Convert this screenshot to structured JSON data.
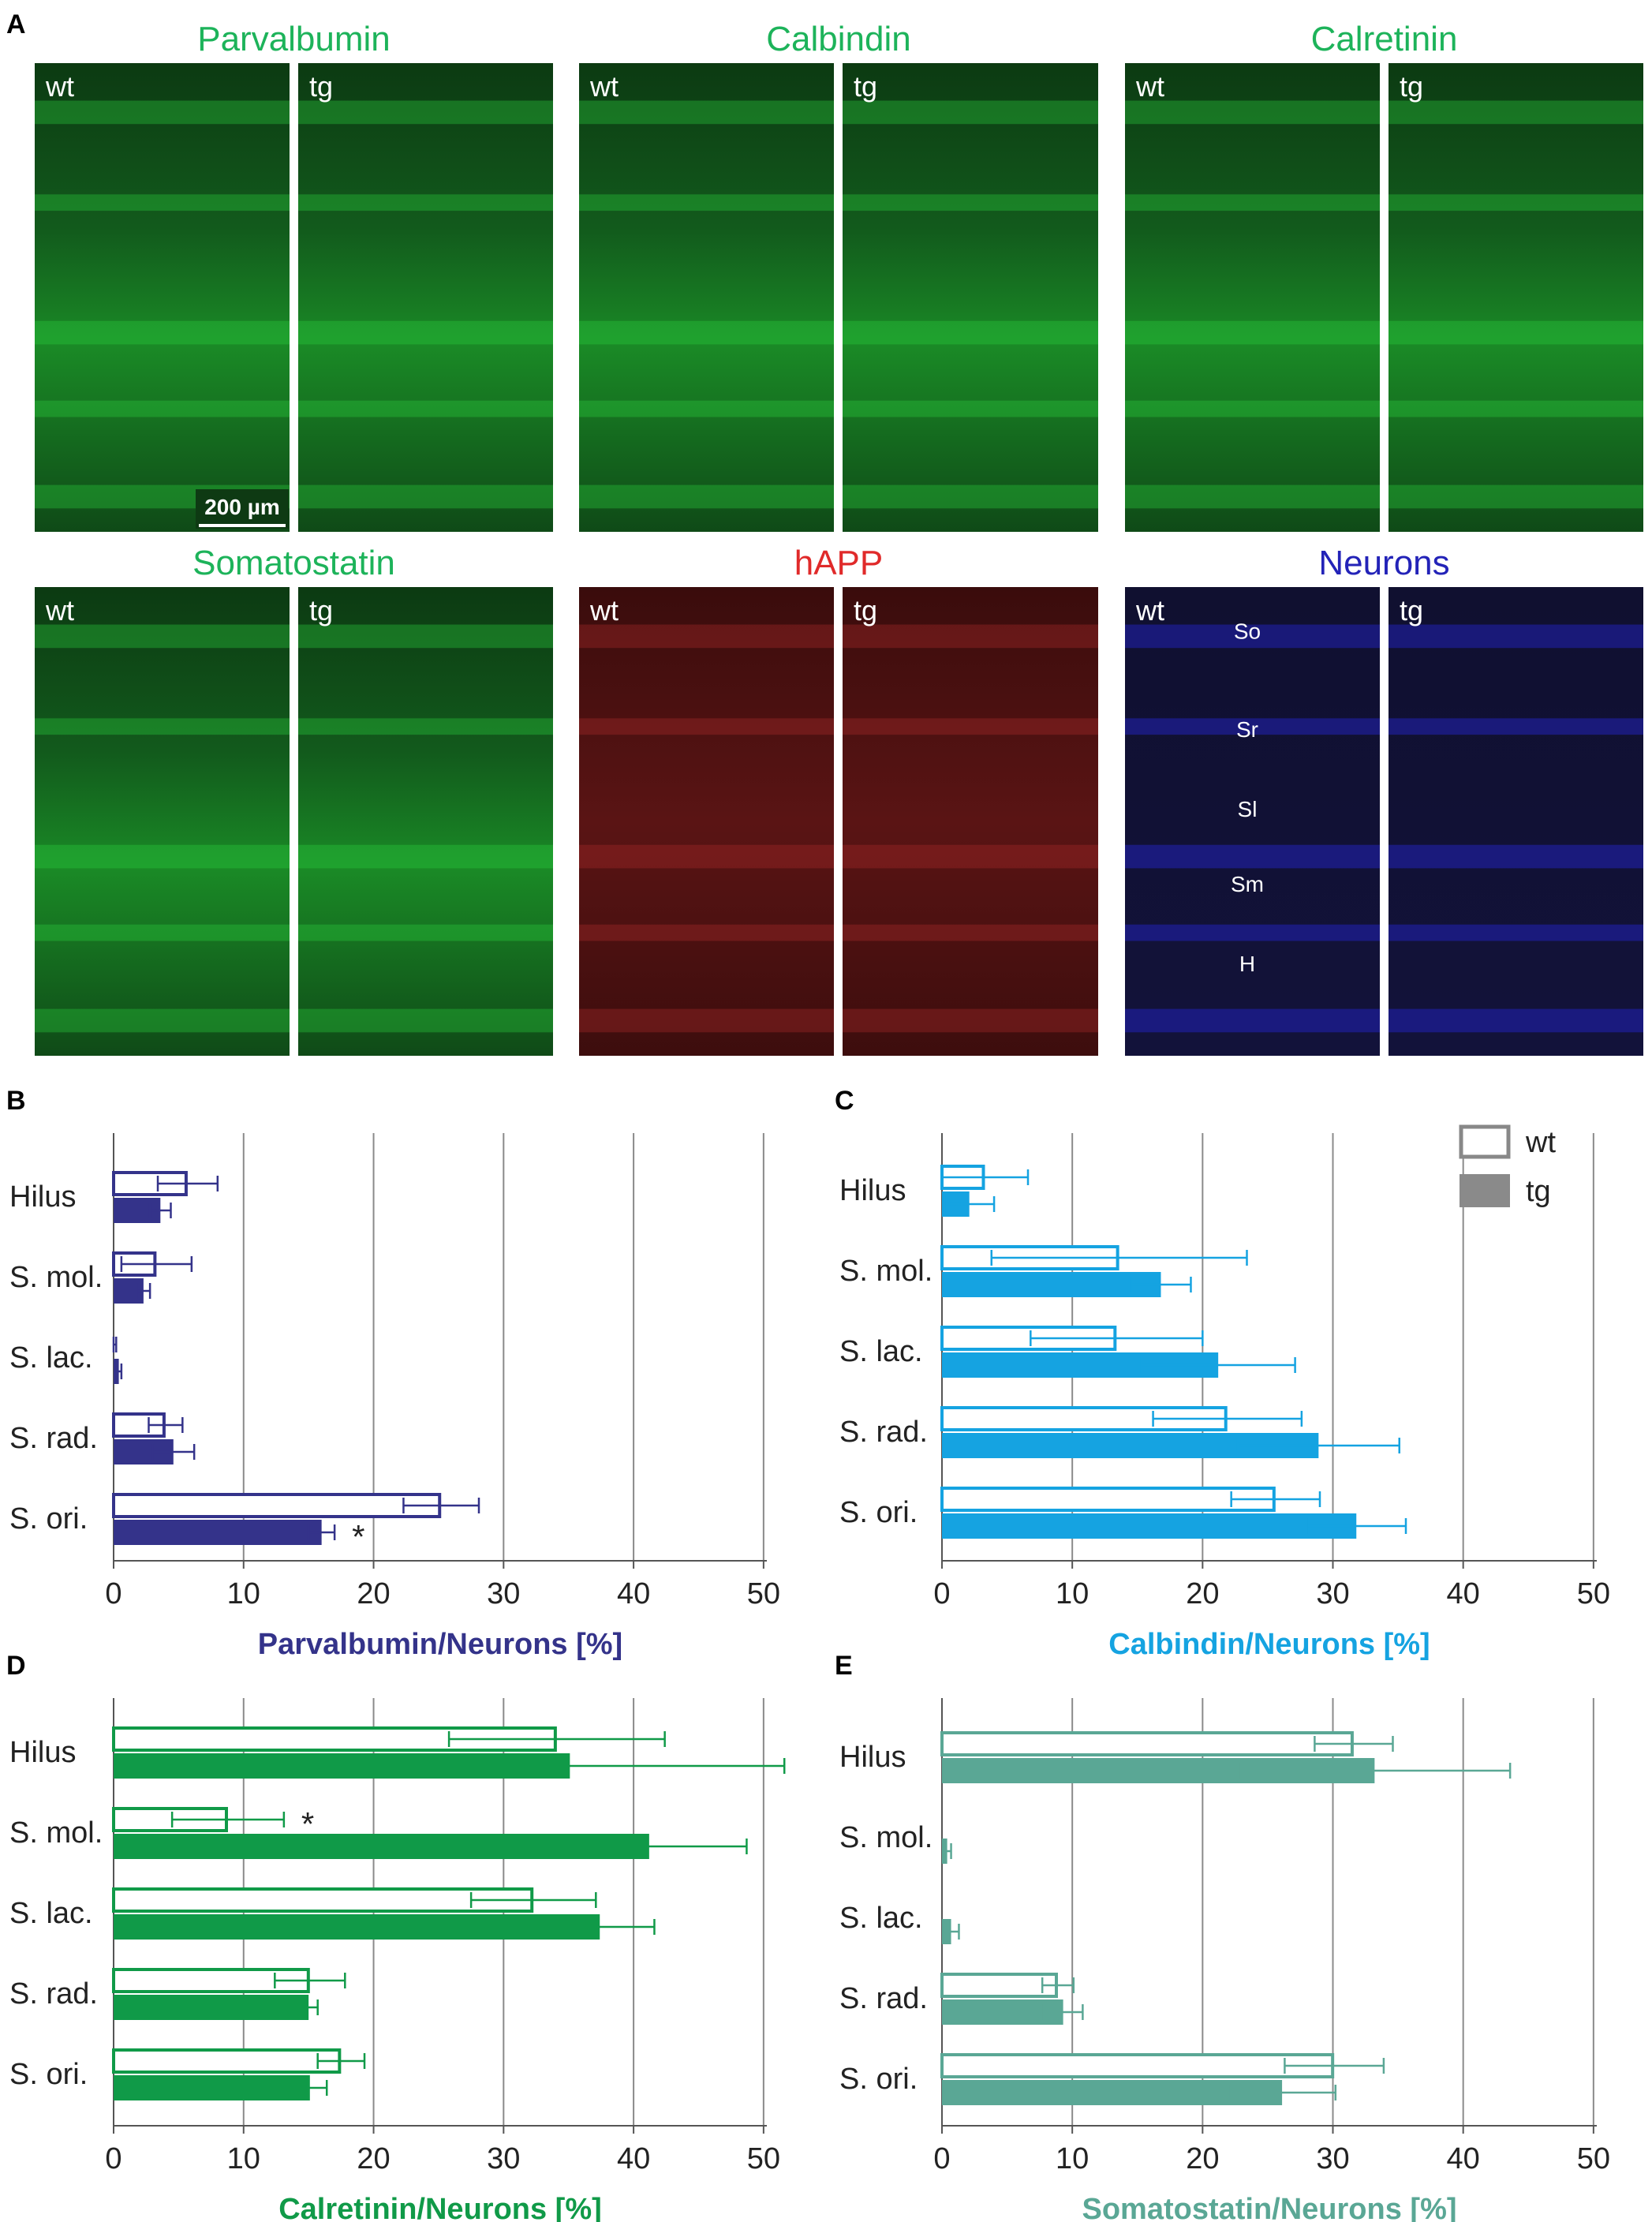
{
  "panel_a": {
    "letter": "A",
    "scale_bar": "200 µm",
    "groups": [
      {
        "title": "Parvalbumin",
        "title_color": "#1db35a",
        "tint": "green",
        "labels": [
          "wt",
          "tg"
        ]
      },
      {
        "title": "Calbindin",
        "title_color": "#1db35a",
        "tint": "green",
        "labels": [
          "wt",
          "tg"
        ]
      },
      {
        "title": "Calretinin",
        "title_color": "#1db35a",
        "tint": "green",
        "labels": [
          "wt",
          "tg"
        ]
      },
      {
        "title": "Somatostatin",
        "title_color": "#1db35a",
        "tint": "green",
        "labels": [
          "wt",
          "tg"
        ]
      },
      {
        "title": "hAPP",
        "title_color": "#e02a2a",
        "tint": "red",
        "labels": [
          "wt",
          "tg"
        ]
      },
      {
        "title": "Neurons",
        "title_color": "#2323b8",
        "tint": "blue",
        "labels": [
          "wt",
          "tg"
        ],
        "layer_labels": [
          "So",
          "Sr",
          "Sl",
          "Sm",
          "H"
        ]
      }
    ]
  },
  "legend": {
    "wt": "wt",
    "tg": "tg"
  },
  "chart_data": [
    {
      "type": "bar",
      "panel": "B",
      "orientation": "horizontal",
      "xlabel": "Parvalbumin/Neurons [%]",
      "color": "#34338a",
      "xlim": [
        0,
        50
      ],
      "xticks": [
        "0",
        "10",
        "20",
        "30",
        "40",
        "50"
      ],
      "categories": [
        "Hilus",
        "S. mol.",
        "S. lac.",
        "S. rad.",
        "S. ori."
      ],
      "series": [
        {
          "name": "wt",
          "values": [
            5.7,
            3.3,
            0.1,
            4.0,
            25.2
          ],
          "errors": [
            2.3,
            2.7,
            0.1,
            1.3,
            2.9
          ]
        },
        {
          "name": "tg",
          "values": [
            3.6,
            2.3,
            0.4,
            4.6,
            16.0
          ],
          "errors": [
            0.8,
            0.5,
            0.2,
            1.6,
            1.0
          ]
        }
      ],
      "annotations": [
        {
          "category": "S. ori.",
          "series": "tg",
          "text": "*"
        }
      ],
      "grid": true
    },
    {
      "type": "bar",
      "panel": "C",
      "orientation": "horizontal",
      "xlabel": "Calbindin/Neurons [%]",
      "color": "#15a3e1",
      "xlim": [
        0,
        50
      ],
      "xticks": [
        "0",
        "10",
        "20",
        "30",
        "40",
        "50"
      ],
      "categories": [
        "Hilus",
        "S. mol.",
        "S. lac.",
        "S. rad.",
        "S. ori."
      ],
      "series": [
        {
          "name": "wt",
          "values": [
            3.3,
            13.6,
            13.4,
            21.9,
            25.6
          ],
          "errors": [
            3.3,
            9.8,
            6.6,
            5.7,
            3.4
          ]
        },
        {
          "name": "tg",
          "values": [
            2.1,
            16.8,
            21.2,
            28.9,
            31.8
          ],
          "errors": [
            1.9,
            2.3,
            5.9,
            6.2,
            3.8
          ]
        }
      ],
      "annotations": [],
      "grid": true
    },
    {
      "type": "bar",
      "panel": "D",
      "orientation": "horizontal",
      "xlabel": "Calretinin/Neurons [%]",
      "color": "#109a48",
      "xlim": [
        0,
        50
      ],
      "xticks": [
        "0",
        "10",
        "20",
        "30",
        "40",
        "50"
      ],
      "categories": [
        "Hilus",
        "S. mol.",
        "S. lac.",
        "S. rad.",
        "S. ori."
      ],
      "series": [
        {
          "name": "wt",
          "values": [
            34.1,
            8.8,
            32.3,
            15.1,
            17.5
          ],
          "errors": [
            8.3,
            4.3,
            4.8,
            2.7,
            1.8
          ]
        },
        {
          "name": "tg",
          "values": [
            35.1,
            41.2,
            37.4,
            15.0,
            15.1
          ],
          "errors": [
            16.5,
            7.5,
            4.2,
            0.7,
            1.3
          ]
        }
      ],
      "annotations": [
        {
          "category": "S. mol.",
          "series": "wt",
          "text": "*"
        }
      ],
      "grid": true
    },
    {
      "type": "bar",
      "panel": "E",
      "orientation": "horizontal",
      "xlabel": "Somatostatin/Neurons [%]",
      "color": "#5aa795",
      "xlim": [
        0,
        50
      ],
      "xticks": [
        "0",
        "10",
        "20",
        "30",
        "40",
        "50"
      ],
      "categories": [
        "Hilus",
        "S. mol.",
        "S. lac.",
        "S. rad.",
        "S. ori."
      ],
      "series": [
        {
          "name": "wt",
          "values": [
            31.6,
            0.0,
            0.0,
            8.9,
            30.1
          ],
          "errors": [
            3.0,
            0.0,
            0.0,
            1.2,
            3.8
          ]
        },
        {
          "name": "tg",
          "values": [
            33.2,
            0.4,
            0.7,
            9.3,
            26.1
          ],
          "errors": [
            10.4,
            0.3,
            0.6,
            1.5,
            4.1
          ]
        }
      ],
      "annotations": [],
      "grid": true
    }
  ]
}
